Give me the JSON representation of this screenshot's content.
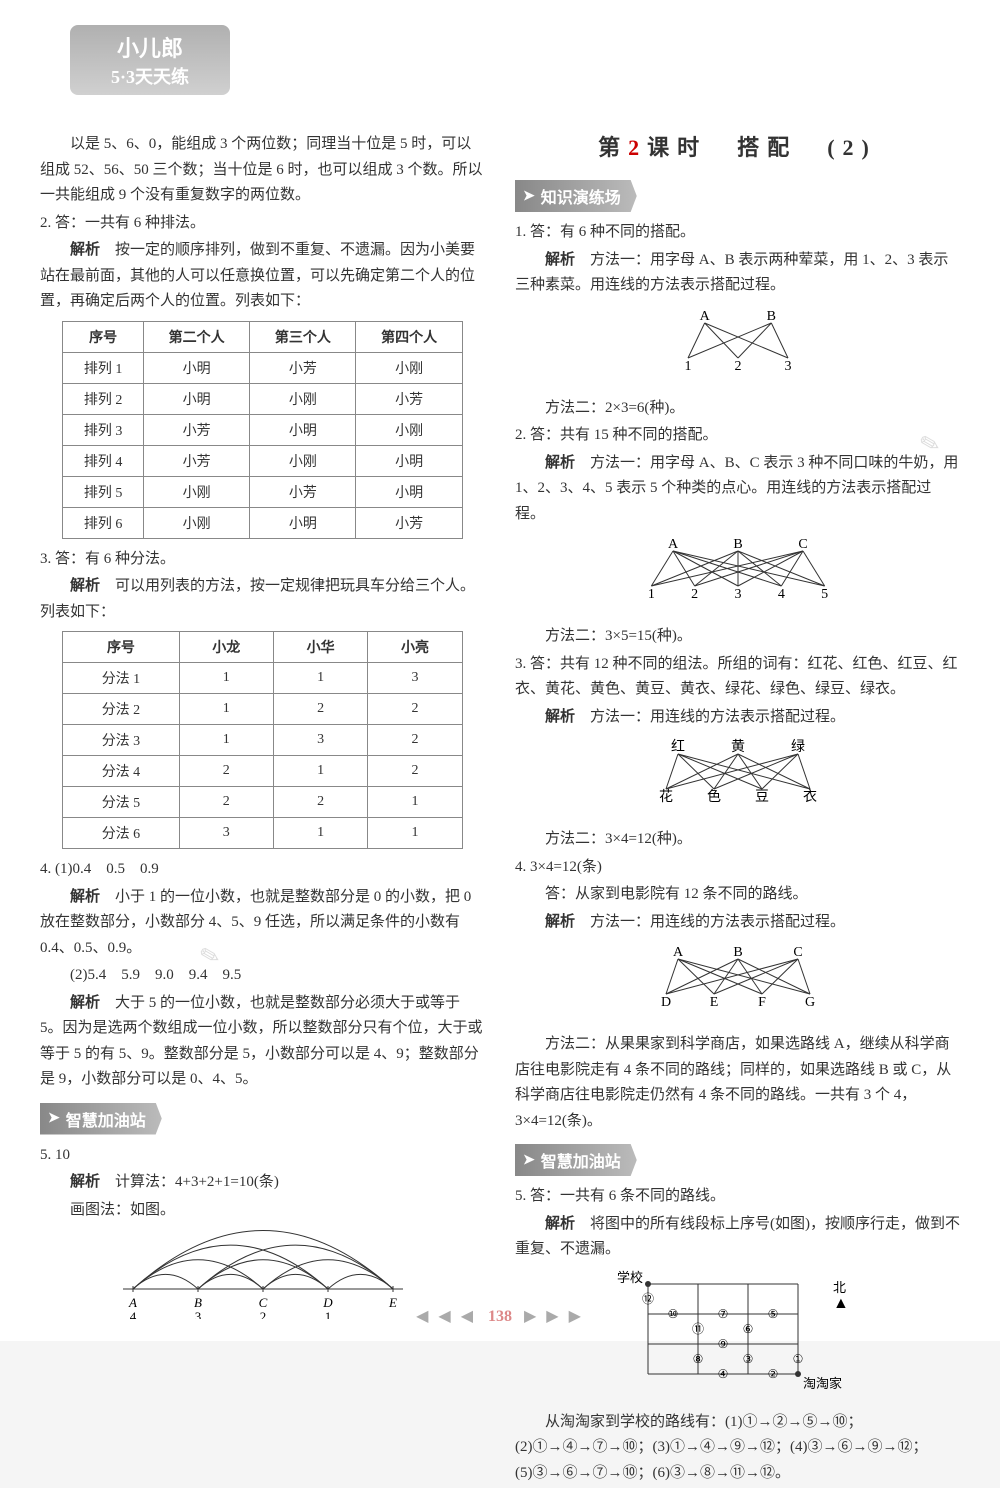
{
  "logo": {
    "line1": "小儿郎",
    "line2": "5·3天天练"
  },
  "pageNumber": "138",
  "left": {
    "p1": "以是 5、6、0，能组成 3 个两位数；同理当十位是 5 时，可以组成 52、56、50 三个数；当十位是 6 时，也可以组成 3 个数。所以一共能组成 9 个没有重复数字的两位数。",
    "q2_ans": "2. 答：一共有 6 种排法。",
    "q2_exp_label": "解析",
    "q2_exp": "　按一定的顺序排列，做到不重复、不遗漏。因为小美要站在最前面，其他的人可以任意换位置，可以先确定第二个人的位置，再确定后两个人的位置。列表如下：",
    "table1": {
      "headers": [
        "序号",
        "第二个人",
        "第三个人",
        "第四个人"
      ],
      "rows": [
        [
          "排列 1",
          "小明",
          "小芳",
          "小刚"
        ],
        [
          "排列 2",
          "小明",
          "小刚",
          "小芳"
        ],
        [
          "排列 3",
          "小芳",
          "小明",
          "小刚"
        ],
        [
          "排列 4",
          "小芳",
          "小刚",
          "小明"
        ],
        [
          "排列 5",
          "小刚",
          "小芳",
          "小明"
        ],
        [
          "排列 6",
          "小刚",
          "小明",
          "小芳"
        ]
      ]
    },
    "q3_ans": "3. 答：有 6 种分法。",
    "q3_exp_label": "解析",
    "q3_exp": "　可以用列表的方法，按一定规律把玩具车分给三个人。列表如下：",
    "table2": {
      "headers": [
        "序号",
        "小龙",
        "小华",
        "小亮"
      ],
      "rows": [
        [
          "分法 1",
          "1",
          "1",
          "3"
        ],
        [
          "分法 2",
          "1",
          "2",
          "2"
        ],
        [
          "分法 3",
          "1",
          "3",
          "2"
        ],
        [
          "分法 4",
          "2",
          "1",
          "2"
        ],
        [
          "分法 5",
          "2",
          "2",
          "1"
        ],
        [
          "分法 6",
          "3",
          "1",
          "1"
        ]
      ]
    },
    "q4_a": "4. (1)0.4　0.5　0.9",
    "q4_a_exp_label": "解析",
    "q4_a_exp": "　小于 1 的一位小数，也就是整数部分是 0 的小数，把 0 放在整数部分，小数部分 4、5、9 任选，所以满足条件的小数有 0.4、0.5、0.9。",
    "q4_b": "(2)5.4　5.9　9.0　9.4　9.5",
    "q4_b_exp_label": "解析",
    "q4_b_exp": "　大于 5 的一位小数，也就是整数部分必须大于或等于 5。因为是选两个数组成一位小数，所以整数部分只有个位，大于或等于 5 的有 5、9。整数部分是 5，小数部分可以是 4、9；整数部分是 9，小数部分可以是 0、4、5。",
    "section_wisdom": "智慧加油站",
    "q5_ans": "5. 10",
    "q5_exp_label": "解析",
    "q5_exp1": "　计算法：4+3+2+1=10(条)",
    "q5_exp2": "画图法：如图。",
    "q5_diagram": {
      "points": [
        "A",
        "B",
        "C",
        "D",
        "E"
      ],
      "nums": [
        "4",
        "3",
        "2",
        "1",
        ""
      ]
    }
  },
  "right": {
    "title_pre": "第",
    "title_num": "2",
    "title_mid": "课时　搭",
    "title_end": "配　(2)",
    "section_practice": "知识演练场",
    "q1_ans": "1. 答：有 6 种不同的搭配。",
    "q1_exp_label": "解析",
    "q1_exp": "　方法一：用字母 A、B 表示两种荤菜，用 1、2、3 表示三种素菜。用连线的方法表示搭配过程。",
    "q1_diagram": {
      "top": [
        "A",
        "B"
      ],
      "bottom": [
        "1",
        "2",
        "3"
      ]
    },
    "q1_m2": "方法二：2×3=6(种)。",
    "q2_ans": "2. 答：共有 15 种不同的搭配。",
    "q2_exp_label": "解析",
    "q2_exp": "　方法一：用字母 A、B、C 表示 3 种不同口味的牛奶，用 1、2、3、4、5 表示 5 个种类的点心。用连线的方法表示搭配过程。",
    "q2_diagram": {
      "top": [
        "A",
        "B",
        "C"
      ],
      "bottom": [
        "1",
        "2",
        "3",
        "4",
        "5"
      ]
    },
    "q2_m2": "方法二：3×5=15(种)。",
    "q3_ans": "3. 答：共有 12 种不同的组法。所组的词有：红花、红色、红豆、红衣、黄花、黄色、黄豆、黄衣、绿花、绿色、绿豆、绿衣。",
    "q3_exp_label": "解析",
    "q3_exp": "　方法一：用连线的方法表示搭配过程。",
    "q3_diagram": {
      "top": [
        "红",
        "黄",
        "绿"
      ],
      "bottom": [
        "花",
        "色",
        "豆",
        "衣"
      ]
    },
    "q3_m2": "方法二：3×4=12(种)。",
    "q4_ans": "4. 3×4=12(条)",
    "q4_line2": "答：从家到电影院有 12 条不同的路线。",
    "q4_exp_label": "解析",
    "q4_exp": "　方法一：用连线的方法表示搭配过程。",
    "q4_diagram": {
      "top": [
        "A",
        "B",
        "C"
      ],
      "bottom": [
        "D",
        "E",
        "F",
        "G"
      ]
    },
    "q4_m2": "方法二：从果果家到科学商店，如果选路线 A，继续从科学商店往电影院走有 4 条不同的路线；同样的，如果选路线 B 或 C，从科学商店往电影院走仍然有 4 条不同的路线。一共有 3 个 4，3×4=12(条)。",
    "section_wisdom": "智慧加油站",
    "q5_ans": "5. 答：一共有 6 条不同的路线。",
    "q5_exp_label": "解析",
    "q5_exp": "　将图中的所有线段标上序号(如图)，按顺序行走，做到不重复、不遗漏。",
    "q5_diagram": {
      "labels": {
        "school": "学校",
        "home": "淘淘家",
        "north": "北"
      },
      "circles": [
        "①",
        "②",
        "③",
        "④",
        "⑤",
        "⑥",
        "⑦",
        "⑧",
        "⑨",
        "⑩",
        "⑪",
        "⑫"
      ]
    },
    "q5_routes": "从淘淘家到学校的路线有：(1)①→②→⑤→⑩；(2)①→④→⑦→⑩；(3)①→④→⑨→⑫；(4)③→⑥→⑨→⑫；(5)③→⑥→⑦→⑩；(6)③→⑧→⑪→⑫。"
  },
  "colors": {
    "text": "#333333",
    "accent": "#cc0000",
    "border": "#888888",
    "tag_bg_from": "#888888",
    "tag_bg_to": "#bbbbbb",
    "page_tri": "#aaaaaa",
    "page_num": "#dd8888"
  }
}
